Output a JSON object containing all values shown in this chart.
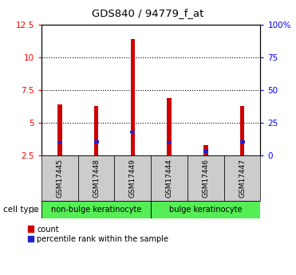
{
  "title": "GDS840 / 94779_f_at",
  "samples": [
    "GSM17445",
    "GSM17448",
    "GSM17449",
    "GSM17444",
    "GSM17446",
    "GSM17447"
  ],
  "count_values": [
    6.4,
    6.3,
    11.4,
    6.9,
    3.3,
    6.3
  ],
  "percentile_values": [
    3.5,
    3.55,
    4.3,
    3.5,
    2.8,
    3.55
  ],
  "ylim_left": [
    2.5,
    12.5
  ],
  "ylim_right": [
    0,
    100
  ],
  "yticks_left": [
    2.5,
    5.0,
    7.5,
    10.0,
    12.5
  ],
  "yticks_right": [
    0,
    25,
    50,
    75,
    100
  ],
  "ytick_labels_left": [
    "2.5",
    "5",
    "7.5",
    "10",
    "12.5"
  ],
  "ytick_labels_right": [
    "0",
    "25",
    "50",
    "75",
    "100%"
  ],
  "bar_color": "#cc0000",
  "percentile_color": "#2222cc",
  "grid_color": "#000000",
  "group1_label": "non-bulge keratinocyte",
  "group2_label": "bulge keratinocyte",
  "group1_indices": [
    0,
    1,
    2
  ],
  "group2_indices": [
    3,
    4,
    5
  ],
  "cell_type_label": "cell type",
  "legend_count": "count",
  "legend_percentile": "percentile rank within the sample",
  "group_bg_color": "#55ee55",
  "tick_bg_color": "#cccccc",
  "bar_width": 0.12
}
